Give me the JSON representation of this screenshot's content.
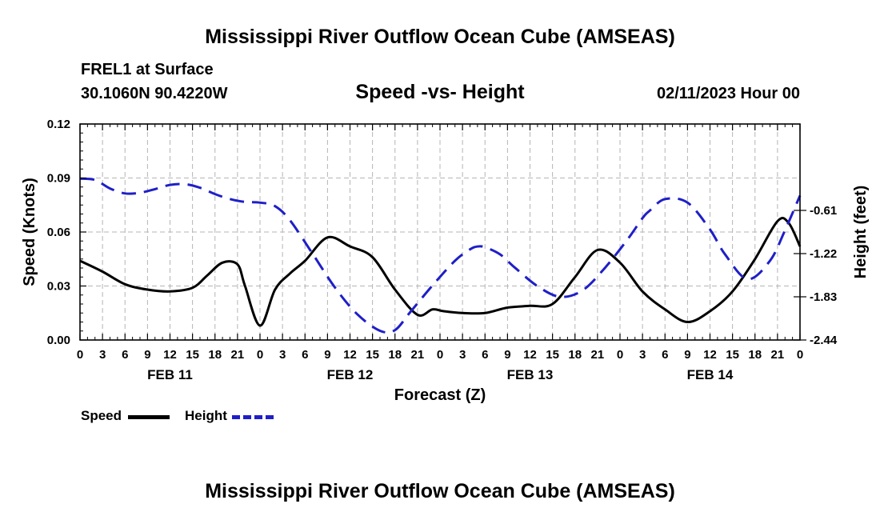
{
  "header": {
    "main_title": "Mississippi River Outflow Ocean Cube (AMSEAS)",
    "station_name": "FREL1 at Surface",
    "station_coords": "30.1060N  90.4220W",
    "date": "02/11/2023 Hour 00"
  },
  "footer": {
    "repeated_title": "Mississippi River Outflow Ocean Cube (AMSEAS)"
  },
  "chart_data": {
    "type": "line",
    "title": "Speed -vs- Height",
    "xlabel": "Forecast (Z)",
    "ylabel_left": "Speed (Knots)",
    "ylabel_right": "Height (feet)",
    "x_range_hours": [
      0,
      96
    ],
    "x_tick_labels": [
      "0",
      "3",
      "6",
      "9",
      "12",
      "15",
      "18",
      "21",
      "0",
      "3",
      "6",
      "9",
      "12",
      "15",
      "18",
      "21",
      "0",
      "3",
      "6",
      "9",
      "12",
      "15",
      "18",
      "21",
      "0",
      "3",
      "6",
      "9",
      "12",
      "15",
      "18",
      "21",
      "0"
    ],
    "day_labels": [
      {
        "label": "FEB 11",
        "hour": 12
      },
      {
        "label": "FEB 12",
        "hour": 36
      },
      {
        "label": "FEB 13",
        "hour": 60
      },
      {
        "label": "FEB 14",
        "hour": 84
      }
    ],
    "ylim_left": [
      0,
      0.12
    ],
    "y_ticks_left": [
      "0.00",
      "0.03",
      "0.06",
      "0.09",
      "0.12"
    ],
    "ylim_right": [
      -2.44,
      0.61
    ],
    "y_ticks_right": [
      "-2.44",
      "-1.83",
      "-1.22",
      "-0.61"
    ],
    "grid": true,
    "series": [
      {
        "name": "Speed",
        "axis": "left",
        "color": "#000000",
        "style": "solid",
        "x": [
          0,
          3,
          6,
          9,
          12,
          15,
          17,
          19,
          21,
          22,
          24,
          26,
          28,
          30,
          33,
          36,
          39,
          42,
          45,
          47,
          48.5,
          51,
          54,
          57,
          60,
          63,
          66,
          69,
          72,
          75,
          78,
          81,
          84,
          87,
          90,
          93,
          94.5,
          96
        ],
        "values": [
          0.044,
          0.038,
          0.031,
          0.028,
          0.027,
          0.029,
          0.036,
          0.043,
          0.042,
          0.03,
          0.008,
          0.028,
          0.037,
          0.044,
          0.057,
          0.052,
          0.046,
          0.028,
          0.014,
          0.017,
          0.016,
          0.015,
          0.015,
          0.018,
          0.019,
          0.02,
          0.035,
          0.05,
          0.043,
          0.027,
          0.017,
          0.01,
          0.016,
          0.027,
          0.045,
          0.066,
          0.065,
          0.052
        ]
      },
      {
        "name": "Height",
        "axis": "right",
        "color": "#1f1fc8",
        "style": "dashed",
        "x": [
          0,
          2,
          4,
          6,
          8,
          10,
          12,
          14,
          16,
          18,
          20,
          22,
          24,
          26,
          28,
          31,
          34,
          37,
          40,
          42,
          44,
          47,
          50,
          52,
          53,
          54,
          56,
          58,
          61,
          64,
          67,
          70,
          73,
          75,
          76,
          78,
          81,
          84,
          86,
          89,
          92,
          94,
          96
        ],
        "values": [
          -0.16,
          -0.18,
          -0.3,
          -0.37,
          -0.36,
          -0.31,
          -0.25,
          -0.24,
          -0.29,
          -0.38,
          -0.45,
          -0.49,
          -0.5,
          -0.55,
          -0.75,
          -1.22,
          -1.7,
          -2.08,
          -2.31,
          -2.3,
          -2.05,
          -1.67,
          -1.32,
          -1.16,
          -1.12,
          -1.13,
          -1.23,
          -1.42,
          -1.68,
          -1.83,
          -1.74,
          -1.42,
          -1.02,
          -0.72,
          -0.61,
          -0.45,
          -0.5,
          -0.88,
          -1.23,
          -1.58,
          -1.32,
          -0.89,
          -0.4
        ]
      }
    ],
    "legend": [
      {
        "label": "Speed",
        "color": "#000000",
        "style": "solid"
      },
      {
        "label": "Height",
        "color": "#1f1fc8",
        "style": "dashed"
      }
    ]
  }
}
